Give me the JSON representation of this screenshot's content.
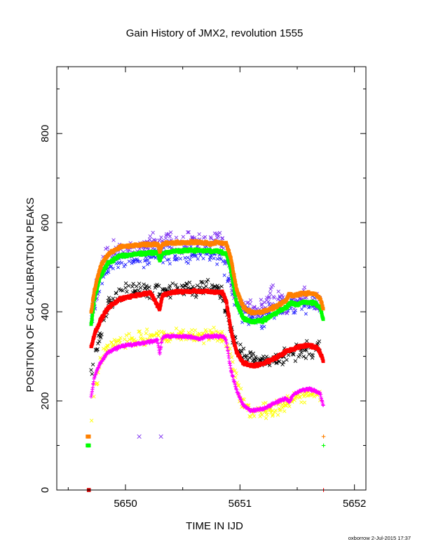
{
  "chart_data": {
    "type": "scatter",
    "title": "Gain History of JMX2, revolution 1555",
    "xlabel": "TIME IN IJD",
    "ylabel": "POSITION OF Cd CALIBRATION PEAKS",
    "xlim": [
      5649.4,
      5652.1
    ],
    "ylim": [
      0,
      950
    ],
    "xticks": [
      "5650",
      "5651",
      "5652"
    ],
    "yticks": [
      "0",
      "200",
      "400",
      "600",
      "800"
    ],
    "xtick_values": [
      5650,
      5651,
      5652
    ],
    "ytick_values": [
      0,
      200,
      400,
      600,
      800
    ],
    "grid": false,
    "legend": "none",
    "footer": "oxborrow  2-Jul-2015 17:37",
    "series": [
      {
        "color": "#ff8000",
        "marker": "square",
        "size": 2.4,
        "scatter": 3,
        "x": [
          5649.7,
          5649.73,
          5649.78,
          5649.85,
          5649.95,
          5650.1,
          5650.28,
          5650.3,
          5650.32,
          5650.34,
          5650.45,
          5650.6,
          5650.7,
          5650.75,
          5650.8,
          5650.88,
          5650.92,
          5650.97,
          5651.03,
          5651.1,
          5651.2,
          5651.3,
          5651.4,
          5651.43,
          5651.46,
          5651.55,
          5651.65,
          5651.7,
          5651.73
        ],
        "y": [
          400,
          450,
          500,
          530,
          545,
          550,
          552,
          535,
          550,
          553,
          555,
          556,
          555,
          552,
          556,
          553,
          520,
          450,
          410,
          398,
          400,
          410,
          425,
          440,
          435,
          442,
          440,
          430,
          405
        ]
      },
      {
        "color": "#00ff00",
        "marker": "square",
        "size": 2.4,
        "scatter": 3,
        "x": [
          5649.7,
          5649.73,
          5649.78,
          5649.85,
          5649.95,
          5650.1,
          5650.28,
          5650.3,
          5650.32,
          5650.4,
          5650.55,
          5650.7,
          5650.8,
          5650.88,
          5650.92,
          5650.97,
          5651.03,
          5651.1,
          5651.2,
          5651.3,
          5651.4,
          5651.45,
          5651.5,
          5651.55,
          5651.65,
          5651.7,
          5651.73
        ],
        "y": [
          370,
          430,
          480,
          510,
          525,
          530,
          533,
          515,
          530,
          535,
          538,
          537,
          536,
          530,
          495,
          420,
          385,
          378,
          380,
          395,
          410,
          420,
          415,
          422,
          420,
          410,
          380
        ]
      },
      {
        "color": "#ff0000",
        "marker": "square",
        "size": 2.4,
        "scatter": 3,
        "x": [
          5649.7,
          5649.73,
          5649.78,
          5649.85,
          5649.95,
          5650.1,
          5650.22,
          5650.3,
          5650.32,
          5650.34,
          5650.45,
          5650.6,
          5650.75,
          5650.85,
          5650.88,
          5650.92,
          5650.97,
          5651.03,
          5651.1,
          5651.2,
          5651.3,
          5651.4,
          5651.5,
          5651.6,
          5651.68,
          5651.73
        ],
        "y": [
          320,
          350,
          380,
          410,
          428,
          438,
          442,
          405,
          435,
          440,
          445,
          446,
          445,
          443,
          425,
          360,
          310,
          285,
          278,
          283,
          295,
          310,
          320,
          325,
          318,
          290
        ]
      },
      {
        "color": "#ff00ff",
        "marker": "plus",
        "size": 2.6,
        "scatter": 3,
        "x": [
          5649.7,
          5649.73,
          5649.78,
          5649.85,
          5649.95,
          5650.1,
          5650.28,
          5650.3,
          5650.32,
          5650.34,
          5650.5,
          5650.6,
          5650.65,
          5650.7,
          5650.85,
          5650.88,
          5650.92,
          5650.97,
          5651.03,
          5651.1,
          5651.2,
          5651.3,
          5651.4,
          5651.43,
          5651.47,
          5651.55,
          5651.62,
          5651.7,
          5651.73
        ],
        "y": [
          210,
          255,
          285,
          310,
          322,
          328,
          336,
          305,
          340,
          345,
          345,
          342,
          338,
          345,
          345,
          335,
          270,
          225,
          190,
          178,
          182,
          195,
          205,
          198,
          215,
          225,
          226,
          218,
          185
        ]
      },
      {
        "color": "#7b2df0",
        "marker": "x",
        "size": 2.4,
        "scatter": 22,
        "x": [
          5649.7,
          5649.78,
          5649.85,
          5649.95,
          5650.1,
          5650.3,
          5650.5,
          5650.7,
          5650.85,
          5650.95,
          5651.05,
          5651.15,
          5651.3,
          5651.4,
          5651.5,
          5651.6,
          5651.7
        ],
        "y": [
          380,
          500,
          530,
          535,
          545,
          560,
          555,
          565,
          555,
          440,
          410,
          400,
          440,
          410,
          430,
          430,
          420
        ]
      },
      {
        "color": "#2020ff",
        "marker": "x",
        "size": 2.2,
        "scatter": 20,
        "x": [
          5649.7,
          5649.8,
          5649.95,
          5650.1,
          5650.3,
          5650.5,
          5650.7,
          5650.85,
          5650.95,
          5651.05,
          5651.2,
          5651.35,
          5651.5,
          5651.7
        ],
        "y": [
          380,
          490,
          515,
          520,
          530,
          525,
          530,
          520,
          430,
          390,
          385,
          410,
          420,
          410
        ]
      },
      {
        "color": "#000000",
        "marker": "x",
        "size": 2.4,
        "scatter": 18,
        "x": [
          5649.7,
          5649.78,
          5649.85,
          5649.95,
          5650.1,
          5650.3,
          5650.5,
          5650.7,
          5650.85,
          5650.95,
          5651.05,
          5651.2,
          5651.35,
          5651.5,
          5651.7
        ],
        "y": [
          260,
          350,
          415,
          440,
          450,
          445,
          450,
          455,
          440,
          330,
          300,
          290,
          290,
          310,
          320
        ]
      },
      {
        "color": "#ffff00",
        "marker": "x",
        "size": 2.4,
        "scatter": 16,
        "x": [
          5649.7,
          5649.78,
          5649.85,
          5649.95,
          5650.1,
          5650.3,
          5650.5,
          5650.7,
          5650.85,
          5650.92,
          5651.0,
          5651.1,
          5651.25,
          5651.4,
          5651.55,
          5651.7
        ],
        "y": [
          160,
          290,
          320,
          335,
          340,
          345,
          350,
          345,
          345,
          300,
          210,
          175,
          180,
          195,
          215,
          210
        ]
      }
    ],
    "extra_points": [
      {
        "color": "#ff8000",
        "marker": "square",
        "x": [
          5649.67,
          5649.68
        ],
        "y": [
          120,
          120
        ]
      },
      {
        "color": "#00ff00",
        "marker": "square",
        "x": [
          5649.67,
          5649.68
        ],
        "y": [
          100,
          100
        ]
      },
      {
        "color": "#7b2df0",
        "marker": "x",
        "x": [
          5650.12,
          5650.31
        ],
        "y": [
          120,
          120
        ]
      },
      {
        "color": "#ff8000",
        "marker": "plus",
        "x": [
          5651.73
        ],
        "y": [
          120
        ]
      },
      {
        "color": "#00ff00",
        "marker": "plus",
        "x": [
          5651.73
        ],
        "y": [
          100
        ]
      },
      {
        "color": "#cc0000",
        "marker": "square",
        "x": [
          5649.68
        ],
        "y": [
          0
        ]
      },
      {
        "color": "#ff0000",
        "marker": "plus",
        "x": [
          5651.73
        ],
        "y": [
          0
        ]
      }
    ]
  }
}
